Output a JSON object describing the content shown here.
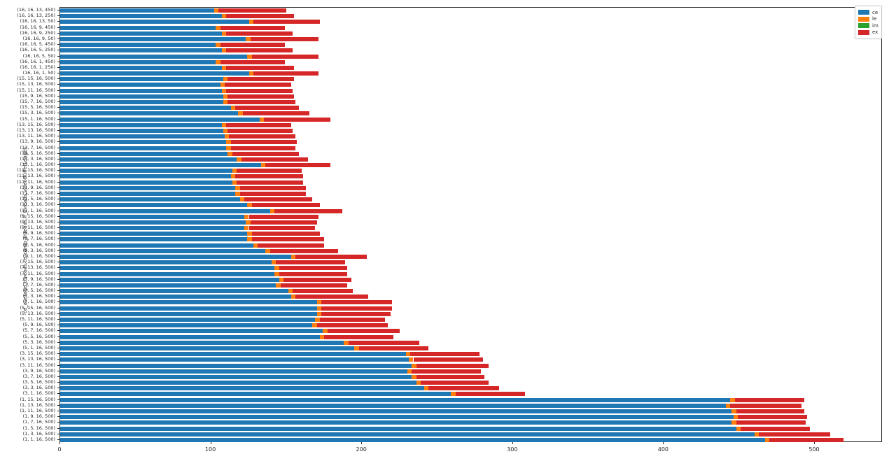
{
  "figure": {
    "ylabel": "ce_average_threads,ce_comp_threads,lf_threads,videoBufferLength"
  },
  "legend": {
    "entries": [
      {
        "label": "ce",
        "color": "#1f77b4"
      },
      {
        "label": "le",
        "color": "#ff7f0e"
      },
      {
        "label": "im",
        "color": "#2ca02c"
      },
      {
        "label": "ex",
        "color": "#d62728"
      }
    ]
  },
  "chart_data": {
    "type": "bar",
    "orientation": "horizontal",
    "stacked": true,
    "title": "",
    "xlabel": "",
    "ylabel": "ce_average_threads,ce_comp_threads,lf_threads,videoBufferLength",
    "xlim": [
      0,
      545
    ],
    "xticks": [
      0,
      100,
      200,
      300,
      400,
      500
    ],
    "grid": false,
    "legend_position": "upper right",
    "categories": [
      "(16, 16, 13, 450)",
      "(16, 16, 13, 250)",
      "(16, 16, 13, 50)",
      "(16, 16, 9, 450)",
      "(16, 16, 9, 250)",
      "(16, 16, 9, 50)",
      "(16, 16, 5, 450)",
      "(16, 16, 5, 250)",
      "(16, 16, 5, 50)",
      "(16, 16, 1, 450)",
      "(16, 16, 1, 250)",
      "(16, 16, 1, 50)",
      "(15, 15, 16, 500)",
      "(15, 13, 16, 500)",
      "(15, 11, 16, 500)",
      "(15, 9, 16, 500)",
      "(15, 7, 16, 500)",
      "(15, 5, 16, 500)",
      "(15, 3, 16, 500)",
      "(15, 1, 16, 500)",
      "(13, 15, 16, 500)",
      "(13, 13, 16, 500)",
      "(13, 11, 16, 500)",
      "(13, 9, 16, 500)",
      "(13, 7, 16, 500)",
      "(13, 5, 16, 500)",
      "(13, 3, 16, 500)",
      "(13, 1, 16, 500)",
      "(11, 15, 16, 500)",
      "(11, 13, 16, 500)",
      "(11, 11, 16, 500)",
      "(11, 9, 16, 500)",
      "(11, 7, 16, 500)",
      "(11, 5, 16, 500)",
      "(11, 3, 16, 500)",
      "(11, 1, 16, 500)",
      "(9, 15, 16, 500)",
      "(9, 13, 16, 500)",
      "(9, 11, 16, 500)",
      "(9, 9, 16, 500)",
      "(9, 7, 16, 500)",
      "(9, 5, 16, 500)",
      "(9, 3, 16, 500)",
      "(9, 1, 16, 500)",
      "(7, 15, 16, 500)",
      "(7, 13, 16, 500)",
      "(7, 11, 16, 500)",
      "(7, 9, 16, 500)",
      "(7, 7, 16, 500)",
      "(7, 5, 16, 500)",
      "(7, 3, 16, 500)",
      "(7, 1, 16, 500)",
      "(5, 15, 16, 500)",
      "(5, 13, 16, 500)",
      "(5, 11, 16, 500)",
      "(5, 9, 16, 500)",
      "(5, 7, 16, 500)",
      "(5, 5, 16, 500)",
      "(5, 3, 16, 500)",
      "(5, 1, 16, 500)",
      "(3, 15, 16, 500)",
      "(3, 13, 16, 500)",
      "(3, 11, 16, 500)",
      "(3, 9, 16, 500)",
      "(3, 7, 16, 500)",
      "(3, 5, 16, 500)",
      "(3, 3, 16, 500)",
      "(3, 1, 16, 500)",
      "(1, 15, 16, 500)",
      "(1, 13, 16, 500)",
      "(1, 11, 16, 500)",
      "(1, 9, 16, 500)",
      "(1, 7, 16, 500)",
      "(1, 5, 16, 500)",
      "(1, 3, 16, 500)",
      "(1, 1, 16, 500)"
    ],
    "series": [
      {
        "name": "ce",
        "color": "#1f77b4",
        "values": [
          102,
          107,
          125,
          103,
          107,
          123,
          103,
          107,
          124,
          103,
          107,
          125,
          108,
          106,
          107,
          108,
          108,
          113,
          118,
          132,
          107,
          108,
          109,
          110,
          110,
          111,
          117,
          133,
          114,
          113,
          114,
          116,
          116,
          119,
          124,
          139,
          122,
          123,
          122,
          124,
          124,
          128,
          136,
          153,
          140,
          142,
          142,
          145,
          143,
          151,
          153,
          170,
          170,
          170,
          169,
          167,
          174,
          172,
          188,
          195,
          229,
          231,
          233,
          230,
          233,
          236,
          241,
          259,
          444,
          441,
          445,
          446,
          445,
          448,
          460,
          467
        ]
      },
      {
        "name": "le",
        "color": "#ff7f0e",
        "values": [
          3,
          3,
          3,
          3,
          3,
          3,
          3,
          3,
          3,
          3,
          3,
          3,
          3,
          3,
          3,
          3,
          3,
          3,
          3,
          3,
          3,
          3,
          3,
          3,
          3,
          3,
          3,
          3,
          3,
          3,
          3,
          3,
          3,
          3,
          3,
          3,
          3,
          3,
          3,
          3,
          3,
          3,
          3,
          3,
          3,
          3,
          3,
          3,
          3,
          3,
          3,
          3,
          3,
          3,
          3,
          3,
          3,
          3,
          3,
          3,
          3,
          3,
          3,
          3,
          3,
          3,
          3,
          3,
          3,
          3,
          3,
          3,
          3,
          3,
          3,
          3
        ]
      },
      {
        "name": "im",
        "color": "#2ca02c",
        "values": [
          0,
          0,
          0,
          0,
          0,
          0,
          0,
          0,
          0,
          0,
          0,
          0,
          0,
          0,
          0,
          0,
          0,
          0,
          0,
          0,
          0,
          0,
          0,
          0,
          0,
          0,
          0,
          0,
          0,
          0,
          0,
          0,
          0,
          0,
          0,
          0,
          0,
          0,
          0,
          0,
          0,
          0,
          0,
          0,
          0,
          0,
          0,
          0,
          0,
          0,
          0,
          0,
          0,
          0,
          0,
          0,
          0,
          0,
          0,
          0,
          0,
          0,
          0,
          0,
          0,
          0,
          0,
          0,
          0,
          0,
          0,
          0,
          0,
          0,
          0,
          0
        ]
      },
      {
        "name": "ex",
        "color": "#d62728",
        "values": [
          45,
          45,
          44,
          43,
          44,
          45,
          43,
          44,
          44,
          43,
          45,
          43,
          44,
          44,
          44,
          44,
          45,
          42,
          44,
          44,
          43,
          43,
          44,
          44,
          43,
          44,
          44,
          43,
          43,
          45,
          44,
          44,
          44,
          45,
          45,
          45,
          46,
          44,
          44,
          45,
          48,
          44,
          45,
          47,
          46,
          45,
          45,
          45,
          44,
          40,
          48,
          47,
          47,
          46,
          43,
          47,
          48,
          46,
          47,
          46,
          46,
          46,
          48,
          46,
          45,
          45,
          47,
          46,
          46,
          47,
          45,
          46,
          46,
          46,
          47,
          49
        ]
      }
    ]
  }
}
